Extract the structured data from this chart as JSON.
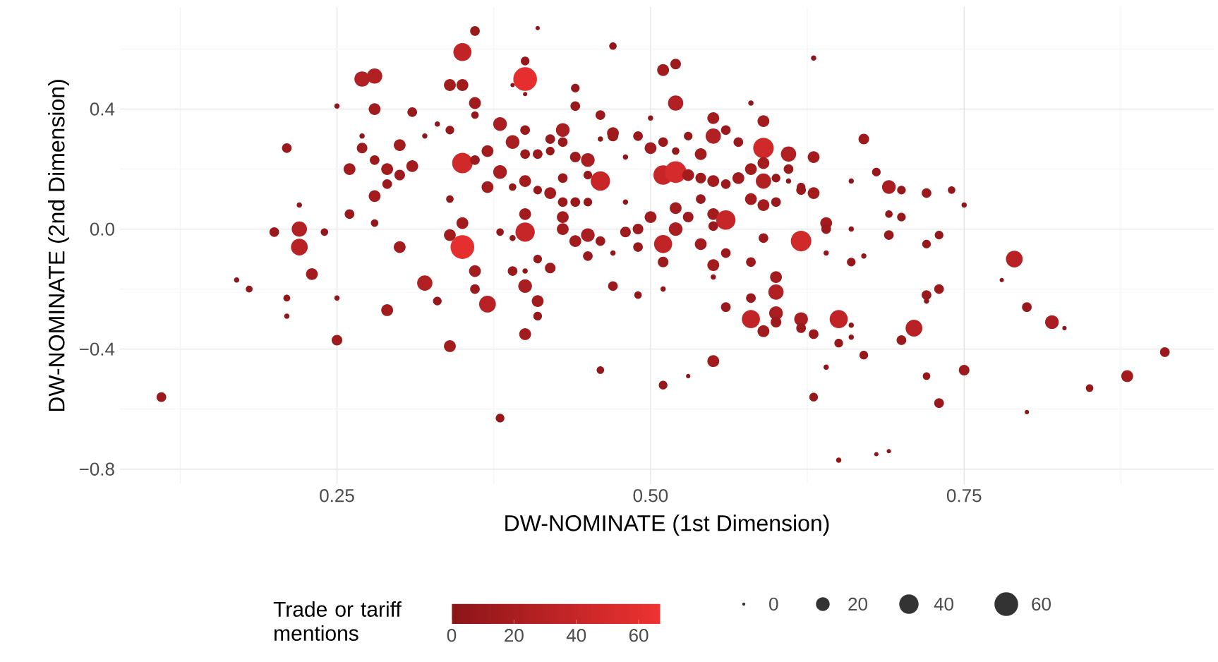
{
  "chart_data": {
    "type": "bubble",
    "xlabel": "DW-NOMINATE (1st Dimension)",
    "ylabel": "DW-NOMINATE (2nd Dimension)",
    "clabel": "Trade or tariff mentions",
    "xlim": [
      0.077,
      0.949
    ],
    "ylim": [
      -0.85,
      0.74
    ],
    "xticks": [
      0.25,
      {
        "value": 0.5,
        "label": "0.50"
      },
      0.75
    ],
    "yticks": [
      {
        "value": -0.8,
        "label": "−0.8"
      },
      {
        "value": -0.4,
        "label": "−0.4"
      },
      {
        "value": 0.0,
        "label": "0.0"
      },
      0.4
    ],
    "clim": [
      0,
      67
    ],
    "cticks": [
      0,
      20,
      40,
      60
    ],
    "size_legend": [
      0,
      20,
      40,
      60
    ],
    "grid": true,
    "x": [
      0.36,
      0.41,
      0.35,
      0.4,
      0.4,
      0.4,
      0.27,
      0.28,
      0.34,
      0.35,
      0.39,
      0.36,
      0.36,
      0.28,
      0.25,
      0.31,
      0.33,
      0.34,
      0.38,
      0.4,
      0.39,
      0.21,
      0.27,
      0.32,
      0.27,
      0.3,
      0.28,
      0.29,
      0.31,
      0.3,
      0.26,
      0.35,
      0.36,
      0.37,
      0.38,
      0.4,
      0.4,
      0.37,
      0.39,
      0.41,
      0.29,
      0.28,
      0.34,
      0.22,
      0.26,
      0.28,
      0.22,
      0.2,
      0.24,
      0.22,
      0.3,
      0.34,
      0.35,
      0.35,
      0.4,
      0.4,
      0.38,
      0.39,
      0.23,
      0.17,
      0.18,
      0.21,
      0.21,
      0.25,
      0.25,
      0.29,
      0.32,
      0.33,
      0.34,
      0.36,
      0.36,
      0.37,
      0.39,
      0.4,
      0.4,
      0.41,
      0.41,
      0.41,
      0.42,
      0.4,
      0.38,
      0.11,
      0.46,
      0.47,
      0.49,
      0.51,
      0.51,
      0.51,
      0.51,
      0.53,
      0.45,
      0.47,
      0.49,
      0.44,
      0.47,
      0.51,
      0.52,
      0.44,
      0.44,
      0.52,
      0.58,
      0.59,
      0.63,
      0.46,
      0.5,
      0.55,
      0.56,
      0.43,
      0.47,
      0.47,
      0.46,
      0.49,
      0.53,
      0.55,
      0.59,
      0.61,
      0.57,
      0.51,
      0.5,
      0.52,
      0.54,
      0.63,
      0.67,
      0.42,
      0.43,
      0.42,
      0.44,
      0.45,
      0.48,
      0.41,
      0.51,
      0.52,
      0.53,
      0.54,
      0.55,
      0.56,
      0.57,
      0.58,
      0.59,
      0.59,
      0.6,
      0.61,
      0.61,
      0.46,
      0.45,
      0.43,
      0.42,
      0.43,
      0.62,
      0.62,
      0.63,
      0.66,
      0.68,
      0.69,
      0.7,
      0.72,
      0.74,
      0.7,
      0.69,
      0.58,
      0.59,
      0.6,
      0.54,
      0.48,
      0.45,
      0.44,
      0.52,
      0.55,
      0.56,
      0.55,
      0.53,
      0.52,
      0.5,
      0.49,
      0.48,
      0.43,
      0.43,
      0.45,
      0.46,
      0.54,
      0.59,
      0.62,
      0.64,
      0.64,
      0.66,
      0.69,
      0.73,
      0.72,
      0.64,
      0.67,
      0.66,
      0.56,
      0.55,
      0.58,
      0.55,
      0.6,
      0.6,
      0.58,
      0.56,
      0.6,
      0.58,
      0.62,
      0.6,
      0.59,
      0.62,
      0.63,
      0.65,
      0.66,
      0.66,
      0.65,
      0.73,
      0.72,
      0.72,
      0.71,
      0.7,
      0.79,
      0.78,
      0.8,
      0.82,
      0.83,
      0.55,
      0.64,
      0.67,
      0.63,
      0.65,
      0.68,
      0.69,
      0.72,
      0.75,
      0.73,
      0.8,
      0.85,
      0.88,
      0.91,
      0.75
    ],
    "values": [
      0.66,
      0.67,
      0.59,
      0.56,
      0.5,
      0.45,
      0.5,
      0.51,
      0.48,
      0.48,
      0.48,
      0.42,
      0.38,
      0.4,
      0.41,
      0.39,
      0.35,
      0.33,
      0.35,
      0.33,
      0.29,
      0.27,
      0.31,
      0.31,
      0.27,
      0.28,
      0.23,
      0.2,
      0.21,
      0.18,
      0.2,
      0.22,
      0.23,
      0.26,
      0.19,
      0.25,
      0.16,
      0.14,
      0.14,
      0.13,
      0.15,
      0.11,
      0.1,
      0.08,
      0.05,
      0.02,
      0.0,
      -0.01,
      -0.01,
      -0.06,
      -0.06,
      -0.02,
      0.02,
      -0.06,
      0.05,
      -0.01,
      -0.01,
      -0.03,
      -0.15,
      -0.17,
      -0.2,
      -0.23,
      -0.29,
      -0.23,
      -0.37,
      -0.27,
      -0.18,
      -0.24,
      -0.39,
      -0.14,
      -0.2,
      -0.25,
      -0.14,
      -0.14,
      -0.19,
      -0.24,
      -0.29,
      -0.1,
      -0.13,
      -0.35,
      -0.63,
      -0.56,
      -0.47,
      -0.19,
      -0.22,
      -0.2,
      -0.52,
      -0.11,
      -0.05,
      -0.49,
      -0.09,
      -0.08,
      -0.06,
      -0.04,
      0.61,
      0.53,
      0.55,
      0.47,
      0.41,
      0.42,
      0.42,
      0.36,
      0.57,
      0.38,
      0.37,
      0.37,
      0.33,
      0.33,
      0.32,
      0.31,
      0.3,
      0.31,
      0.31,
      0.31,
      0.27,
      0.25,
      0.29,
      0.29,
      0.27,
      0.26,
      0.25,
      0.24,
      0.3,
      0.3,
      0.29,
      0.26,
      0.24,
      0.23,
      0.24,
      0.25,
      0.18,
      0.19,
      0.18,
      0.17,
      0.16,
      0.15,
      0.17,
      0.2,
      0.22,
      0.16,
      0.17,
      0.2,
      0.16,
      0.16,
      0.18,
      0.17,
      0.12,
      0.09,
      0.13,
      0.14,
      0.12,
      0.16,
      0.19,
      0.14,
      0.13,
      0.12,
      0.13,
      0.04,
      0.05,
      0.1,
      0.08,
      0.09,
      0.1,
      0.09,
      0.09,
      0.09,
      0.07,
      0.05,
      0.03,
      0.01,
      0.04,
      0.0,
      0.04,
      0.0,
      -0.01,
      0.04,
      0.0,
      -0.02,
      -0.04,
      -0.05,
      -0.03,
      -0.04,
      0.02,
      0.0,
      0.0,
      -0.02,
      -0.02,
      -0.05,
      -0.08,
      -0.09,
      -0.11,
      -0.08,
      -0.12,
      -0.11,
      -0.16,
      -0.16,
      -0.21,
      -0.23,
      -0.26,
      -0.28,
      -0.3,
      -0.3,
      -0.31,
      -0.34,
      -0.33,
      -0.35,
      -0.3,
      -0.32,
      -0.36,
      -0.38,
      -0.2,
      -0.22,
      -0.24,
      -0.33,
      -0.37,
      -0.1,
      -0.17,
      -0.26,
      -0.31,
      -0.33,
      -0.44,
      -0.46,
      -0.42,
      -0.56,
      -0.77,
      -0.75,
      -0.74,
      -0.49,
      -0.47,
      -0.58,
      -0.61,
      -0.53,
      -0.49,
      -0.41,
      0.08
    ],
    "sizes": [
      10,
      2,
      35,
      8,
      60,
      2,
      25,
      25,
      15,
      15,
      2,
      15,
      6,
      15,
      3,
      10,
      3,
      8,
      20,
      10,
      20,
      10,
      3,
      3,
      12,
      15,
      10,
      15,
      15,
      12,
      15,
      45,
      10,
      15,
      20,
      10,
      15,
      15,
      6,
      8,
      10,
      15,
      6,
      3,
      10,
      6,
      25,
      10,
      6,
      30,
      15,
      15,
      15,
      60,
      15,
      40,
      6,
      4,
      15,
      3,
      5,
      5,
      3,
      3,
      12,
      15,
      25,
      8,
      15,
      15,
      10,
      30,
      10,
      3,
      20,
      15,
      8,
      8,
      12,
      15,
      8,
      10,
      6,
      10,
      6,
      3,
      8,
      12,
      35,
      2,
      10,
      3,
      10,
      15,
      6,
      15,
      12,
      8,
      10,
      25,
      3,
      15,
      3,
      10,
      3,
      15,
      10,
      20,
      15,
      12,
      3,
      10,
      8,
      25,
      45,
      25,
      10,
      10,
      15,
      6,
      15,
      15,
      12,
      10,
      10,
      8,
      12,
      20,
      3,
      10,
      40,
      50,
      15,
      12,
      15,
      10,
      15,
      15,
      15,
      25,
      8,
      10,
      3,
      40,
      8,
      10,
      15,
      10,
      10,
      8,
      15,
      3,
      8,
      20,
      8,
      10,
      6,
      8,
      6,
      15,
      15,
      10,
      10,
      3,
      8,
      10,
      15,
      15,
      40,
      10,
      12,
      20,
      15,
      12,
      12,
      15,
      15,
      20,
      10,
      15,
      10,
      45,
      15,
      10,
      3,
      10,
      8,
      8,
      3,
      3,
      8,
      10,
      15,
      10,
      3,
      15,
      25,
      10,
      10,
      20,
      35,
      20,
      12,
      15,
      10,
      10,
      35,
      3,
      3,
      8,
      10,
      10,
      3,
      30,
      10,
      30,
      2,
      10,
      20,
      2,
      15,
      3,
      8,
      8,
      3,
      2,
      2,
      6,
      12,
      10,
      2,
      6,
      15,
      10,
      3
    ],
    "cvalues": [
      10,
      2,
      35,
      8,
      60,
      2,
      25,
      25,
      15,
      15,
      2,
      15,
      6,
      15,
      3,
      10,
      3,
      8,
      20,
      10,
      20,
      10,
      3,
      3,
      12,
      15,
      10,
      15,
      15,
      12,
      15,
      45,
      10,
      15,
      20,
      10,
      15,
      15,
      6,
      8,
      10,
      15,
      6,
      3,
      10,
      6,
      25,
      10,
      6,
      30,
      15,
      15,
      15,
      60,
      15,
      40,
      6,
      4,
      15,
      3,
      5,
      5,
      3,
      3,
      12,
      15,
      25,
      8,
      15,
      15,
      10,
      30,
      10,
      3,
      20,
      15,
      8,
      8,
      12,
      15,
      8,
      10,
      6,
      10,
      6,
      3,
      8,
      12,
      35,
      2,
      10,
      3,
      10,
      15,
      6,
      15,
      12,
      8,
      10,
      25,
      3,
      15,
      3,
      10,
      3,
      15,
      10,
      20,
      15,
      12,
      3,
      10,
      8,
      25,
      45,
      25,
      10,
      10,
      15,
      6,
      15,
      15,
      12,
      10,
      10,
      8,
      12,
      20,
      3,
      10,
      40,
      50,
      15,
      12,
      15,
      10,
      15,
      15,
      15,
      25,
      8,
      10,
      3,
      40,
      8,
      10,
      15,
      10,
      10,
      8,
      15,
      3,
      8,
      20,
      8,
      10,
      6,
      8,
      6,
      15,
      15,
      10,
      10,
      3,
      8,
      10,
      15,
      15,
      40,
      10,
      12,
      20,
      15,
      12,
      12,
      15,
      15,
      20,
      10,
      15,
      10,
      45,
      15,
      10,
      3,
      10,
      8,
      8,
      3,
      3,
      8,
      10,
      15,
      10,
      3,
      15,
      25,
      10,
      10,
      20,
      35,
      20,
      12,
      15,
      10,
      10,
      35,
      3,
      3,
      8,
      10,
      10,
      3,
      30,
      10,
      30,
      2,
      10,
      20,
      2,
      15,
      3,
      8,
      8,
      3,
      2,
      2,
      6,
      12,
      10,
      2,
      6,
      15,
      10,
      3
    ]
  }
}
